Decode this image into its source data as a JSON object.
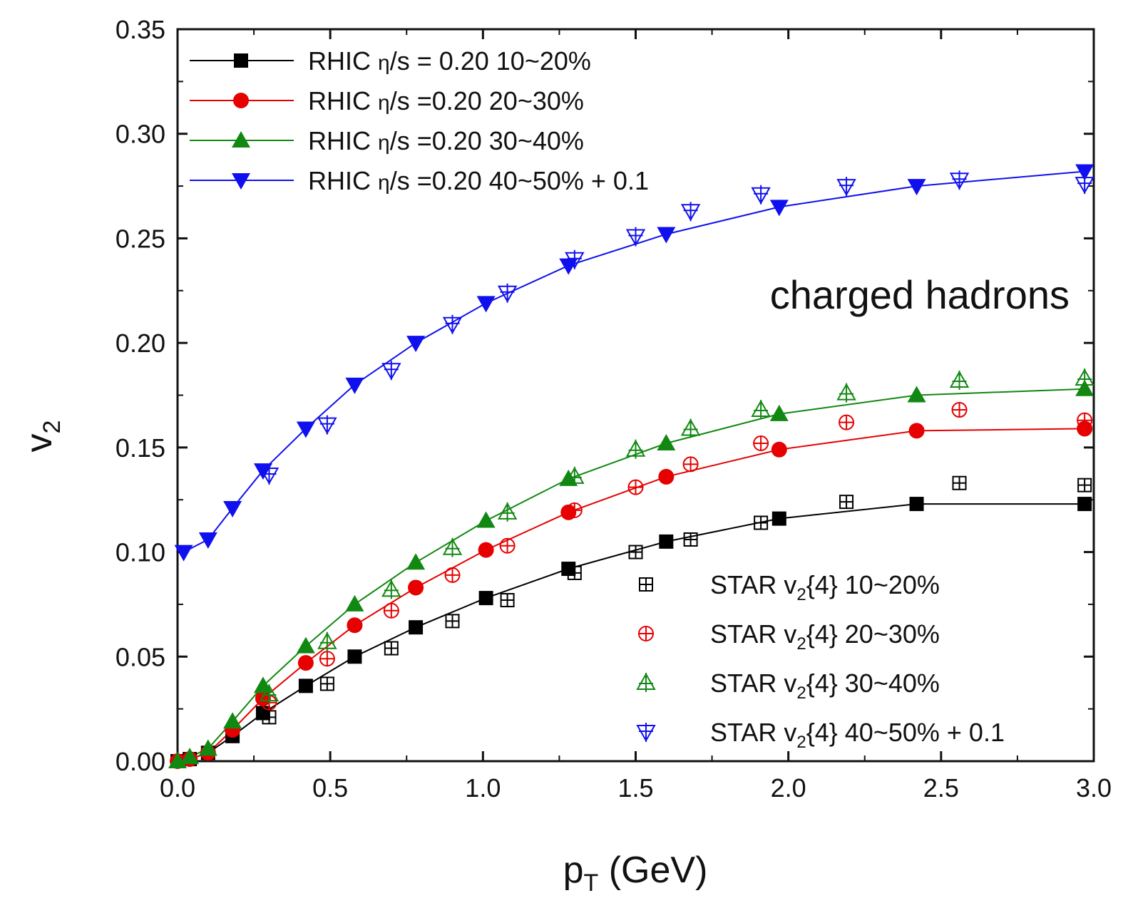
{
  "chart_data": {
    "type": "scatter",
    "xlabel": "p",
    "xlabel_sub": "T",
    "xlabel_unit": " (GeV)",
    "ylabel": "v",
    "ylabel_sub": "2",
    "xlim": [
      0.0,
      3.0
    ],
    "ylim": [
      0.0,
      0.35
    ],
    "xticks": [
      "0.0",
      "0.5",
      "1.0",
      "1.5",
      "2.0",
      "2.5",
      "3.0"
    ],
    "yticks": [
      "0.00",
      "0.05",
      "0.10",
      "0.15",
      "0.20",
      "0.25",
      "0.30",
      "0.35"
    ],
    "annotation": "charged hadrons",
    "legend_upper": {
      "placement": "top-left",
      "entries": [
        {
          "pre": "RHIC ",
          "eta": "η",
          "post": "/s = 0.20 10~20%"
        },
        {
          "pre": "RHIC ",
          "eta": "η",
          "post": "/s =0.20 20~30%"
        },
        {
          "pre": "RHIC ",
          "eta": "η",
          "post": "/s =0.20 30~40%"
        },
        {
          "pre": "RHIC ",
          "eta": "η",
          "post": "/s =0.20 40~50% + 0.1"
        }
      ]
    },
    "legend_lower": {
      "placement": "bottom-right",
      "entries": [
        {
          "pre": "STAR v",
          "sub": "2",
          "post": "{4} 10~20%"
        },
        {
          "pre": "STAR v",
          "sub": "2",
          "post": "{4} 20~30%"
        },
        {
          "pre": "STAR v",
          "sub": "2",
          "post": "{4} 30~40%"
        },
        {
          "pre": "STAR v",
          "sub": "2",
          "post": "{4} 40~50% + 0.1"
        }
      ]
    },
    "series": [
      {
        "group": "RHIC",
        "color": "#000000",
        "marker": "square",
        "x": [
          0.0,
          0.04,
          0.1,
          0.18,
          0.28,
          0.42,
          0.58,
          0.78,
          1.01,
          1.28,
          1.6,
          1.97,
          2.42,
          2.97
        ],
        "y": [
          0.0,
          0.001,
          0.004,
          0.012,
          0.023,
          0.036,
          0.05,
          0.064,
          0.078,
          0.092,
          0.105,
          0.116,
          0.123,
          0.123
        ]
      },
      {
        "group": "RHIC",
        "color": "#e60000",
        "marker": "circle",
        "x": [
          0.0,
          0.04,
          0.1,
          0.18,
          0.28,
          0.42,
          0.58,
          0.78,
          1.01,
          1.28,
          1.6,
          1.97,
          2.42,
          2.97
        ],
        "y": [
          0.0,
          0.001,
          0.004,
          0.015,
          0.03,
          0.047,
          0.065,
          0.083,
          0.101,
          0.119,
          0.136,
          0.149,
          0.158,
          0.159
        ]
      },
      {
        "group": "RHIC",
        "color": "#118811",
        "marker": "triangle-up",
        "x": [
          0.0,
          0.04,
          0.1,
          0.18,
          0.28,
          0.42,
          0.58,
          0.78,
          1.01,
          1.28,
          1.6,
          1.97,
          2.42,
          2.97
        ],
        "y": [
          0.0,
          0.002,
          0.006,
          0.019,
          0.036,
          0.055,
          0.075,
          0.095,
          0.115,
          0.135,
          0.152,
          0.166,
          0.175,
          0.178
        ]
      },
      {
        "group": "RHIC",
        "color": "#1010ee",
        "marker": "triangle-down",
        "x": [
          0.02,
          0.1,
          0.18,
          0.28,
          0.42,
          0.58,
          0.78,
          1.01,
          1.28,
          1.6,
          1.97,
          2.42,
          2.97
        ],
        "y": [
          0.1,
          0.106,
          0.121,
          0.139,
          0.159,
          0.18,
          0.2,
          0.219,
          0.237,
          0.252,
          0.265,
          0.275,
          0.282
        ]
      },
      {
        "group": "STAR",
        "color": "#000000",
        "marker": "square-plus",
        "x": [
          0.3,
          0.49,
          0.7,
          0.9,
          1.08,
          1.3,
          1.5,
          1.68,
          1.91,
          2.19,
          2.56,
          2.97
        ],
        "y": [
          0.021,
          0.037,
          0.054,
          0.067,
          0.077,
          0.09,
          0.1,
          0.106,
          0.114,
          0.124,
          0.133,
          0.132
        ]
      },
      {
        "group": "STAR",
        "color": "#e60000",
        "marker": "circle-plus",
        "x": [
          0.3,
          0.49,
          0.7,
          0.9,
          1.08,
          1.3,
          1.5,
          1.68,
          1.91,
          2.19,
          2.56,
          2.97
        ],
        "y": [
          0.028,
          0.049,
          0.072,
          0.089,
          0.103,
          0.12,
          0.131,
          0.142,
          0.152,
          0.162,
          0.168,
          0.163
        ]
      },
      {
        "group": "STAR",
        "color": "#118811",
        "marker": "triangle-up-cross",
        "x": [
          0.3,
          0.49,
          0.7,
          0.9,
          1.08,
          1.3,
          1.5,
          1.68,
          1.91,
          2.19,
          2.56,
          2.97
        ],
        "y": [
          0.032,
          0.057,
          0.082,
          0.102,
          0.119,
          0.136,
          0.149,
          0.159,
          0.168,
          0.176,
          0.182,
          0.183
        ]
      },
      {
        "group": "STAR",
        "color": "#1010ee",
        "marker": "triangle-down-cross",
        "x": [
          0.3,
          0.49,
          0.7,
          0.9,
          1.08,
          1.3,
          1.5,
          1.68,
          1.91,
          2.19,
          2.56,
          2.97
        ],
        "y": [
          0.137,
          0.161,
          0.187,
          0.209,
          0.224,
          0.24,
          0.251,
          0.263,
          0.271,
          0.275,
          0.278,
          0.276
        ]
      }
    ]
  }
}
